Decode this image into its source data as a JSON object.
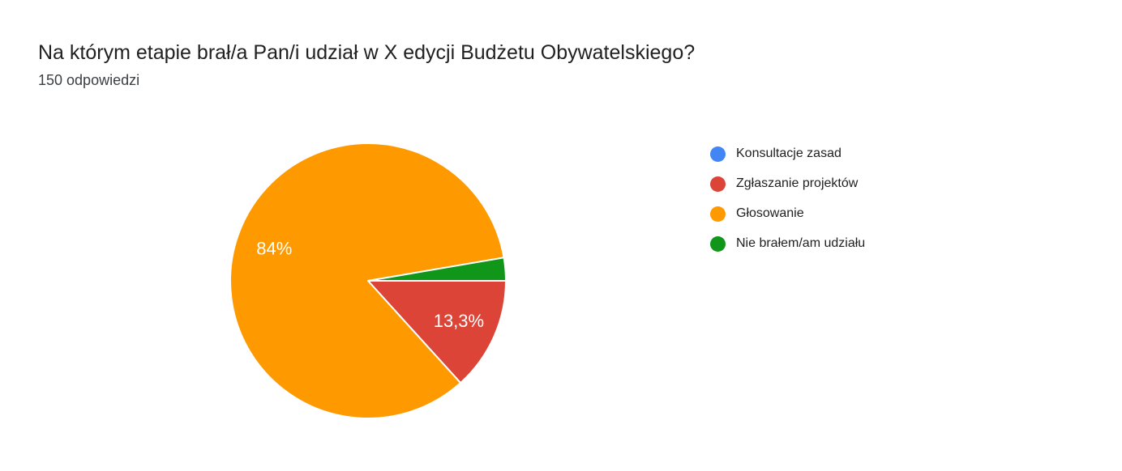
{
  "chart_data": {
    "type": "pie",
    "title": "Na którym etapie brał/a Pan/i udział w X edycji Budżetu Obywatelskiego?",
    "subtitle": "150 odpowiedzi",
    "total_responses": 150,
    "legend_position": "right",
    "start_angle_deg": 0,
    "direction": "clockwise",
    "label_text_color": "#ffffff",
    "slice_border_color": "#ffffff",
    "slices": [
      {
        "label": "Konsultacje zasad",
        "color": "#4285F4",
        "percent": 0,
        "display_label": ""
      },
      {
        "label": "Zgłaszanie projektów",
        "color": "#DB4437",
        "percent": 13.3,
        "display_label": "13,3%"
      },
      {
        "label": "Głosowanie",
        "color": "#FF9900",
        "percent": 84,
        "display_label": "84%"
      },
      {
        "label": "Nie brałem/am udziału",
        "color": "#109618",
        "percent": 2.7,
        "display_label": ""
      }
    ]
  }
}
